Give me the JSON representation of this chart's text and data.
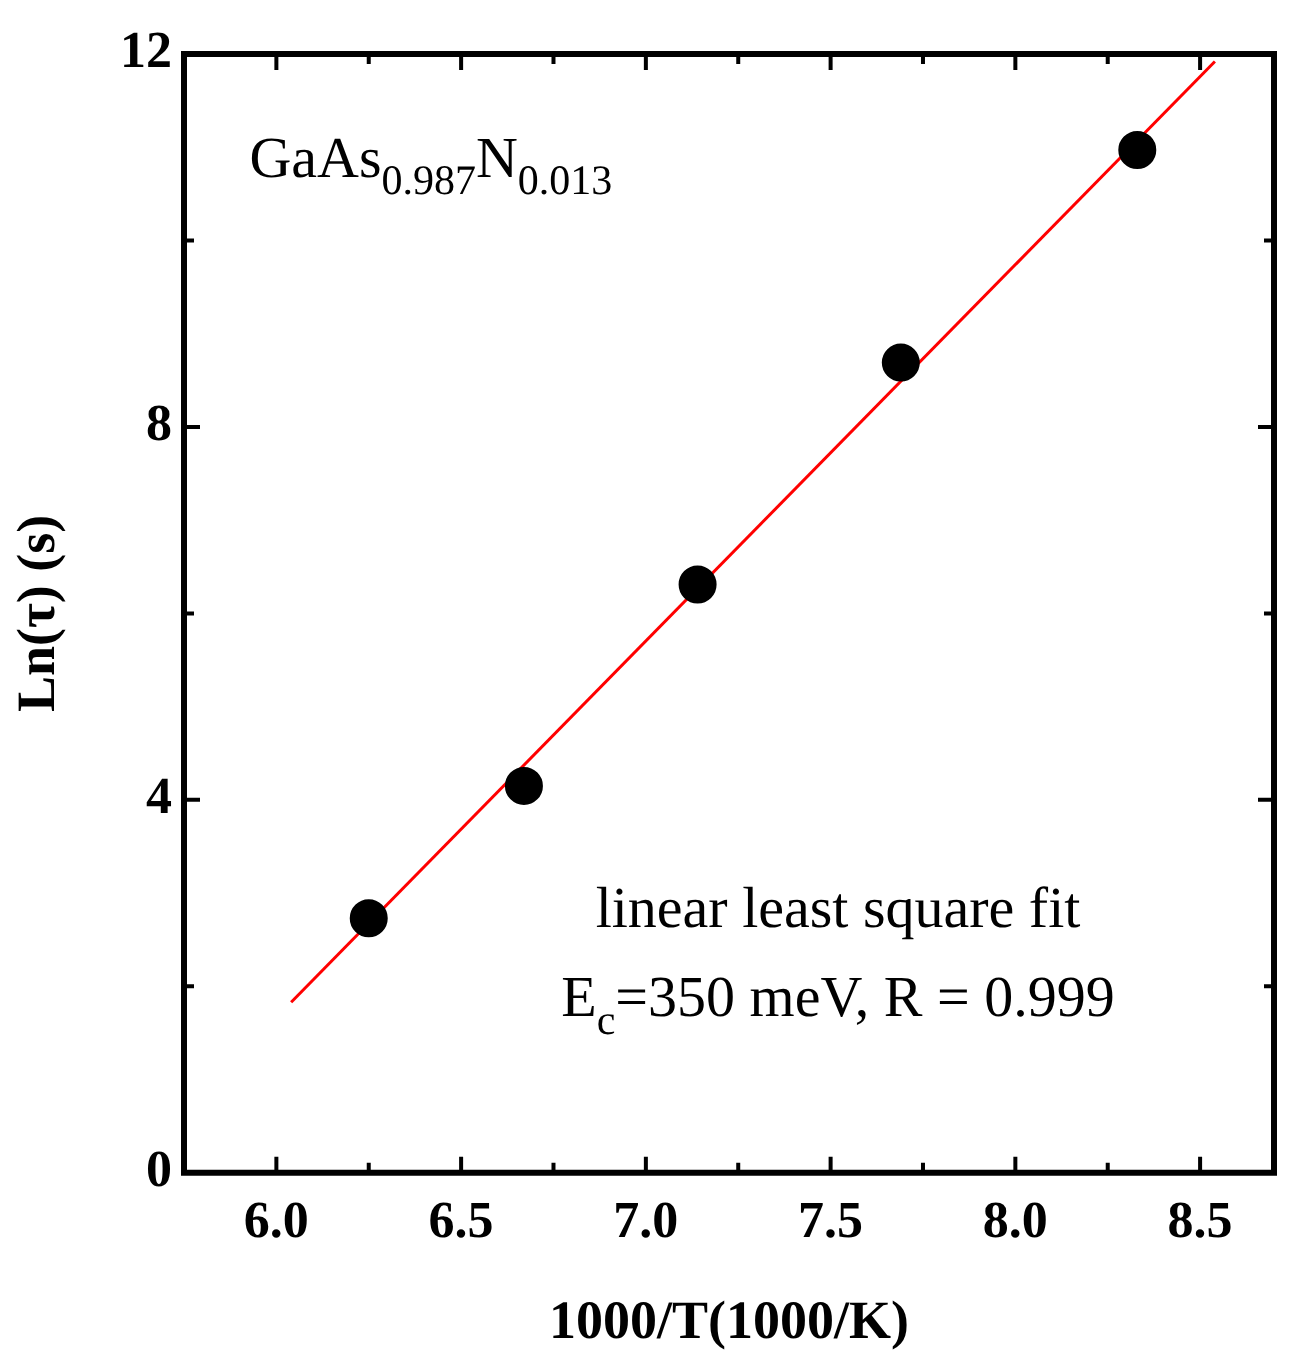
{
  "chart_data": {
    "type": "scatter",
    "xlabel": "1000/T(1000/K)",
    "ylabel": "Ln(τ) (s)",
    "xlim": [
      5.75,
      8.7
    ],
    "ylim": [
      0,
      12
    ],
    "xticks": [
      {
        "value": 6,
        "label": "6.0"
      },
      {
        "value": 6.25,
        "label": null
      },
      {
        "value": 6.5,
        "label": "6.5"
      },
      {
        "value": 6.75,
        "label": null
      },
      {
        "value": 7,
        "label": "7.0"
      },
      {
        "value": 7.25,
        "label": null
      },
      {
        "value": 7.5,
        "label": "7.5"
      },
      {
        "value": 7.75,
        "label": null
      },
      {
        "value": 8,
        "label": "8.0"
      },
      {
        "value": 8.25,
        "label": null
      },
      {
        "value": 8.5,
        "label": "8.5"
      }
    ],
    "yticks": [
      0,
      {
        "value": 2,
        "label": null
      },
      4,
      {
        "value": 6,
        "label": null
      },
      8,
      {
        "value": 10,
        "label": null
      },
      12
    ],
    "series": [
      {
        "color": "#000000",
        "marker": "circle",
        "x": [
          6.25,
          6.67,
          7.14,
          7.69,
          8.33
        ],
        "values": [
          2.73,
          4.15,
          6.31,
          8.69,
          10.97
        ]
      },
      {
        "type": "line",
        "color": "#ff0000",
        "marker": "none",
        "x": [
          6.04,
          8.54
        ],
        "values": [
          1.83,
          11.92
        ]
      }
    ],
    "annotations": [
      "GaAs$_{0.987}$N$_{0.013}$",
      "linear least square fit",
      "E$_{c}$=350 meV, R = 0.999"
    ],
    "grid": false,
    "legend": false
  }
}
